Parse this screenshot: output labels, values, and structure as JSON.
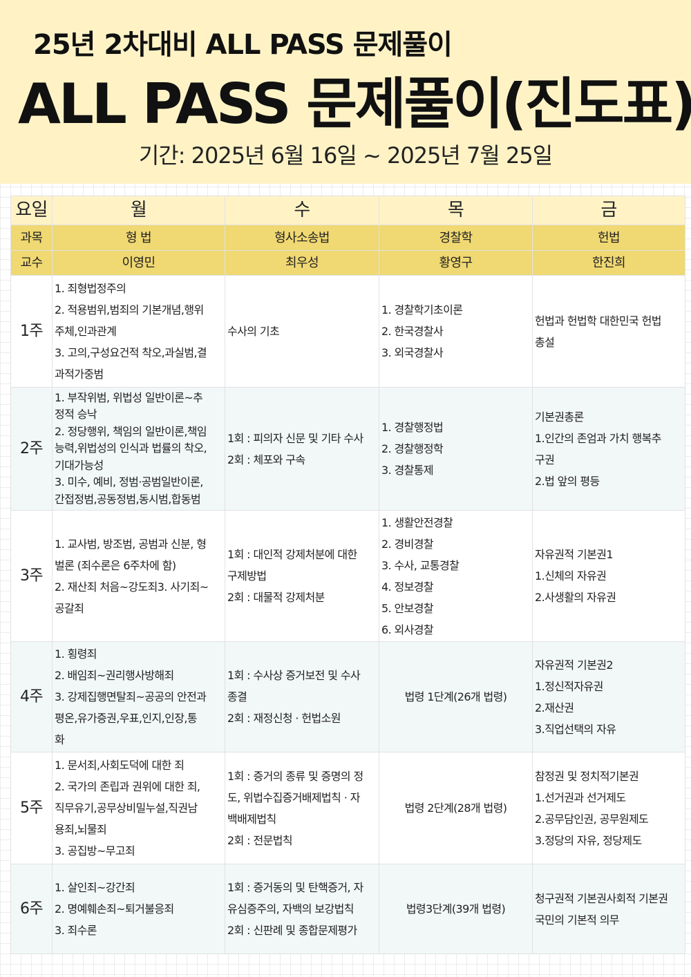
{
  "header": {
    "subtitle": "25년 2차대비 ALL PASS 문제풀이",
    "title": "ALL PASS 문제풀이(진도표)",
    "period": "기간: 2025년 6월 16일 ~ 2025년 7월 25일"
  },
  "colors": {
    "banner": "#fff3c6",
    "subject_row": "#f0d872",
    "alt_row": "#f2f7f7"
  },
  "table": {
    "day_label": "요일",
    "days": [
      "월",
      "수",
      "목",
      "금"
    ],
    "subject_label": "과목",
    "subjects": [
      "형 법",
      "형사소송법",
      "경찰학",
      "헌법"
    ],
    "professor_label": "교수",
    "professors": [
      "이영민",
      "최우성",
      "황영구",
      "한진희"
    ],
    "weeks": [
      {
        "label": "1주",
        "cells": [
          [
            "1. 죄형법정주의",
            "2. 적용범위,범죄의 기본개념,행위",
            "주체,인과관계",
            "3. 고의,구성요건적 착오,과실범,결",
            "과적가중범"
          ],
          [
            "수사의 기초"
          ],
          [
            "1. 경찰학기초이론",
            "2. 한국경찰사",
            "3. 외국경찰사"
          ],
          [
            "헌법과 헌법학 대한민국 헌법",
            "총설"
          ]
        ]
      },
      {
        "label": "2주",
        "cells": [
          [
            "1. 부작위범, 위법성 일반이론~추",
            "정적 승낙",
            "2. 정당행위, 책임의 일반이론,책임",
            "능력,위법성의 인식과 법률의 착오,",
            "기대가능성",
            "3. 미수, 예비, 정범·공범일반이론,",
            "간접정범,공동정범,동시범,합동범"
          ],
          [
            "1회 : 피의자 신문 및 기타 수사",
            "2회 : 체포와 구속"
          ],
          [
            "1. 경찰행정법",
            "2. 경찰행정학",
            "3. 경찰통제"
          ],
          [
            "기본권총론",
            "1.인간의 존엄과 가치 행복추",
            "구권",
            "2.법 앞의 평등"
          ]
        ]
      },
      {
        "label": "3주",
        "cells": [
          [
            "1. 교사범, 방조범, 공범과 신분, 형",
            "벌론 (죄수론은 6주차에 함)",
            "2. 재산죄 처음~강도죄3. 사기죄~",
            "공갈죄"
          ],
          [
            "1회 : 대인적 강제처분에 대한",
            "구제방법",
            "2회 : 대물적 강제처분"
          ],
          [
            "1. 생활안전경찰",
            "2. 경비경찰",
            "3. 수사, 교통경찰",
            "4. 정보경찰",
            "5. 안보경찰",
            "6. 외사경찰"
          ],
          [
            "자유권적 기본권1",
            "1.신체의 자유권",
            "2.사생활의 자유권"
          ]
        ]
      },
      {
        "label": "4주",
        "cells": [
          [
            "1. 횡령죄",
            "2. 배임죄~권리행사방해죄",
            "3. 강제집행면탈죄~공공의 안전과",
            "평온,유가증권,우표,인지,인장,통",
            "화"
          ],
          [
            "1회 : 수사상 증거보전 및 수사",
            "종결",
            "2회 : 재정신청 · 헌법소원"
          ],
          [
            "법령 1단계(26개 법령)"
          ],
          [
            "자유권적 기본권2",
            "1.정신적자유권",
            "2.재산권",
            "3.직업선택의 자유"
          ]
        ]
      },
      {
        "label": "5주",
        "cells": [
          [
            "1. 문서죄,사회도덕에 대한 죄",
            "2. 국가의 존립과 권위에 대한 죄,",
            "직무유기,공무상비밀누설,직권남",
            "용죄,뇌물죄",
            "3. 공집방~무고죄"
          ],
          [
            "1회 : 증거의 종류 및 증명의 정",
            "도, 위법수집증거배제법칙 · 자",
            "백배제법칙",
            "2회 : 전문법칙"
          ],
          [
            "법령 2단계(28개 법령)"
          ],
          [
            "참정권 및 정치적기본권",
            "1.선거권과 선거제도",
            "2.공무담인권, 공무원제도",
            "3.정당의 자유, 정당제도"
          ]
        ]
      },
      {
        "label": "6주",
        "cells": [
          [
            "1. 살인죄~강간죄",
            "2. 명예훼손죄~퇴거불응죄",
            "3. 죄수론"
          ],
          [
            "1회 : 증거동의 및 탄핵증거, 자",
            "유심증주의, 자백의 보강법칙",
            "2회 : 신판례 및 종합문제평가"
          ],
          [
            "법령3단계(39개 법령)"
          ],
          [
            "청구권적 기본권사회적 기본권",
            "국민의 기본적 의무"
          ]
        ]
      }
    ]
  }
}
